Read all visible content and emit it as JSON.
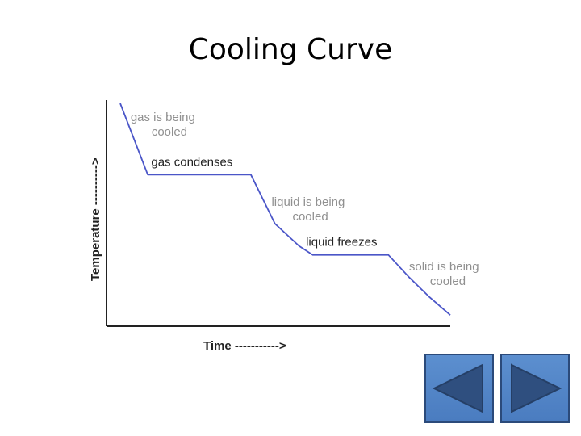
{
  "slide": {
    "title": "Cooling Curve"
  },
  "chart_data": {
    "type": "line",
    "title": "Cooling Curve",
    "xlabel": "Time ----------->",
    "ylabel": "Temperature ---------->",
    "x_ticks_shown": false,
    "y_ticks_shown": false,
    "grid": false,
    "legend": "none",
    "xlim": [
      0,
      10
    ],
    "ylim": [
      0,
      10
    ],
    "series": [
      {
        "line_color": "#4b56c8",
        "points": [
          {
            "x": 0.4,
            "y": 10.0
          },
          {
            "x": 1.2,
            "y": 6.8
          },
          {
            "x": 4.2,
            "y": 6.8
          },
          {
            "x": 4.9,
            "y": 4.6
          },
          {
            "x": 5.6,
            "y": 3.6
          },
          {
            "x": 6.0,
            "y": 3.2
          },
          {
            "x": 8.2,
            "y": 3.2
          },
          {
            "x": 8.8,
            "y": 2.2
          },
          {
            "x": 9.4,
            "y": 1.3
          },
          {
            "x": 10.0,
            "y": 0.5
          }
        ]
      }
    ],
    "annotations": [
      {
        "lines": [
          "gas is being",
          "cooled"
        ],
        "x": 0.7,
        "y": 9.2,
        "color": "#909090",
        "weight": "normal"
      },
      {
        "lines": [
          "gas condenses"
        ],
        "x": 1.3,
        "y": 7.2,
        "color": "#222222",
        "weight": "normal"
      },
      {
        "lines": [
          "liquid is being",
          "cooled"
        ],
        "x": 4.8,
        "y": 5.4,
        "color": "#909090",
        "weight": "normal"
      },
      {
        "lines": [
          "liquid freezes"
        ],
        "x": 5.8,
        "y": 3.6,
        "color": "#222222",
        "weight": "normal"
      },
      {
        "lines": [
          "solid is being",
          "cooled"
        ],
        "x": 8.8,
        "y": 2.5,
        "color": "#909090",
        "weight": "normal"
      }
    ]
  },
  "navigation": {
    "prev_icon": "triangle-left-icon",
    "next_icon": "triangle-right-icon",
    "button_color": "#5a8dcc",
    "arrow_color": "#2f4f7f"
  }
}
